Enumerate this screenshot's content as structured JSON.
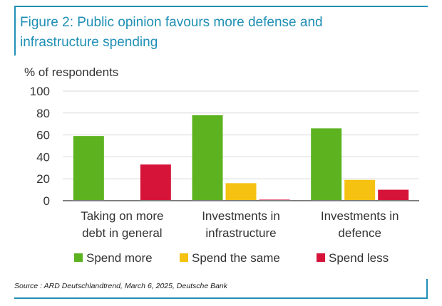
{
  "figure": {
    "title": "Figure 2: Public opinion favours more defense and infrastructure spending",
    "source": "Source : ARD Deutschlandtrend, March 6, 2025, Deutsche Bank"
  },
  "colors": {
    "accent": "#1f8fb5"
  },
  "chart_data": {
    "type": "bar",
    "ylabel": "% of respondents",
    "ylim": [
      0,
      100
    ],
    "yticks": [
      0,
      20,
      40,
      60,
      80,
      100
    ],
    "grid": true,
    "legend_position": "bottom",
    "categories": [
      [
        "Taking on more",
        "debt in general"
      ],
      [
        "Investments in",
        "infrastructure"
      ],
      [
        "Investments in",
        "defence"
      ]
    ],
    "series": [
      {
        "name": "Spend more",
        "color": "#5cb31f",
        "values": [
          59,
          78,
          66
        ]
      },
      {
        "name": "Spend the same",
        "color": "#f5c211",
        "values": [
          0,
          16,
          19
        ]
      },
      {
        "name": "Spend less",
        "color": "#d6143a",
        "values": [
          33,
          1,
          10
        ]
      }
    ]
  }
}
